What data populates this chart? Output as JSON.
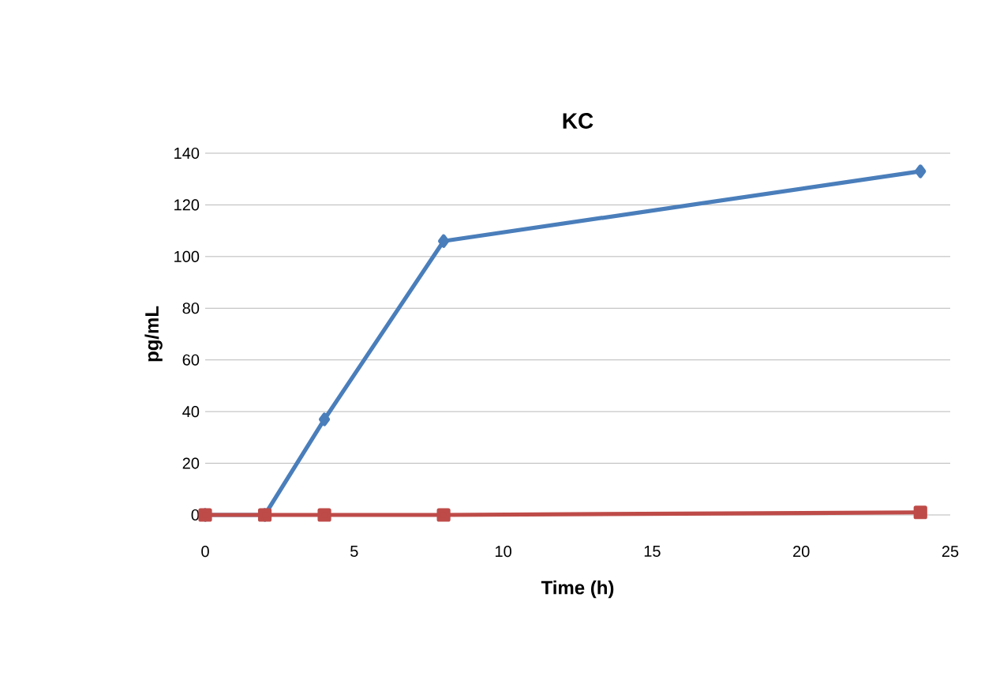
{
  "chart_data": {
    "type": "line",
    "title": "KC",
    "xlabel": "Time (h)",
    "ylabel": "pg/mL",
    "xlim": [
      0,
      25
    ],
    "xticks": [
      0,
      5,
      10,
      15,
      20,
      25
    ],
    "ylim": [
      0,
      140
    ],
    "yticks": [
      0,
      20,
      40,
      60,
      80,
      100,
      120,
      140
    ],
    "grid": "y",
    "series": [
      {
        "color": "#4a7ebb",
        "marker": "diamond",
        "x": [
          0,
          2,
          4,
          8,
          24
        ],
        "values": [
          0,
          0,
          37,
          106,
          133
        ]
      },
      {
        "color": "#be4b48",
        "marker": "square",
        "x": [
          0,
          2,
          4,
          8,
          24
        ],
        "values": [
          0,
          0,
          0,
          0,
          1
        ]
      }
    ]
  }
}
